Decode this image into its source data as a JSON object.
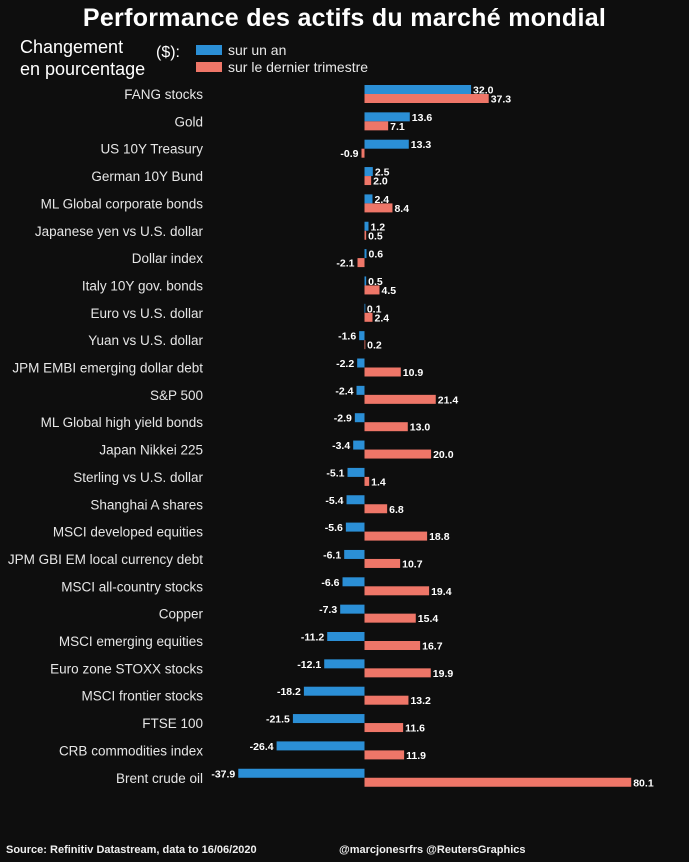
{
  "page": {
    "title": "Performance des actifs du marché mondial",
    "ylabel": "Changement\nen pourcentage",
    "unit": "($):",
    "source": "Source: Refinitiv Datastream, data to 16/06/2020",
    "credit": "@marcjonesrfrs @ReutersGraphics"
  },
  "colors": {
    "background": "#0e0e0e",
    "series_year": "#2b8fd6",
    "series_quarter": "#ee7668"
  },
  "chart_data": {
    "type": "bar",
    "orientation": "horizontal",
    "categories": [
      "FANG stocks",
      "Gold",
      "US 10Y Treasury",
      "German 10Y Bund",
      "ML Global corporate bonds",
      "Japanese yen vs U.S. dollar",
      "Dollar index",
      "Italy 10Y gov. bonds",
      "Euro vs U.S. dollar",
      "Yuan vs U.S. dollar",
      "JPM EMBI emerging dollar debt",
      "S&P 500",
      "ML Global high yield bonds",
      "Japan Nikkei 225",
      "Sterling vs U.S. dollar",
      "Shanghai A shares",
      "MSCI developed equities",
      "JPM GBI EM local currency debt",
      "MSCI all-country stocks",
      "Copper",
      "MSCI emerging equities",
      "Euro zone STOXX stocks",
      "MSCI frontier stocks",
      "FTSE 100",
      "CRB commodities index",
      "Brent crude oil"
    ],
    "series": [
      {
        "name": "sur un an",
        "color": "#2b8fd6",
        "values": [
          32.0,
          13.6,
          13.3,
          2.5,
          2.4,
          1.2,
          0.6,
          0.5,
          0.1,
          -1.6,
          -2.2,
          -2.4,
          -2.9,
          -3.4,
          -5.1,
          -5.4,
          -5.6,
          -6.1,
          -6.6,
          -7.3,
          -11.2,
          -12.1,
          -18.2,
          -21.5,
          -26.4,
          -37.9
        ]
      },
      {
        "name": "sur le dernier trimestre",
        "color": "#ee7668",
        "values": [
          37.3,
          7.1,
          -0.9,
          2.0,
          8.4,
          0.5,
          -2.1,
          4.5,
          2.4,
          0.2,
          10.9,
          21.4,
          13.0,
          20.0,
          1.4,
          6.8,
          18.8,
          10.7,
          19.4,
          15.4,
          16.7,
          19.9,
          13.2,
          11.6,
          11.9,
          80.1
        ]
      }
    ]
  }
}
